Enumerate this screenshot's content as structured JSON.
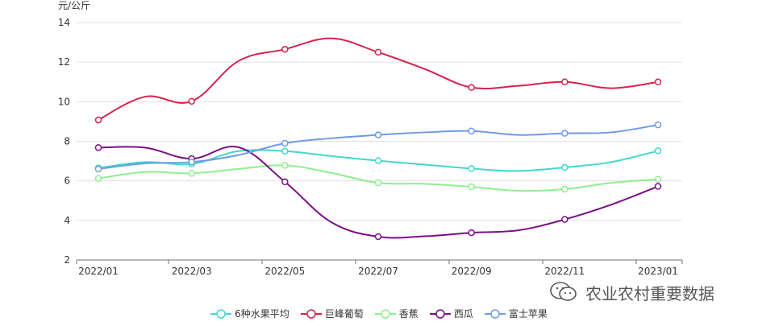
{
  "chart_data": {
    "type": "line",
    "unit_label": "元/公斤",
    "ylim": [
      2,
      14
    ],
    "y_ticks": [
      2,
      4,
      6,
      8,
      10,
      12,
      14
    ],
    "x": [
      "2022/01",
      "2022/02",
      "2022/03",
      "2022/04",
      "2022/05",
      "2022/06",
      "2022/07",
      "2022/08",
      "2022/09",
      "2022/10",
      "2022/11",
      "2022/12",
      "2023/01"
    ],
    "x_tick_labels": [
      "2022/01",
      "2022/03",
      "2022/05",
      "2022/07",
      "2022/09",
      "2022/11",
      "2023/01"
    ],
    "grid": true,
    "legend_position": "bottom",
    "series": [
      {
        "name": "6种水果平均",
        "color": "#40d8cc",
        "values": [
          6.65,
          6.95,
          6.85,
          7.5,
          7.5,
          7.25,
          7.02,
          6.82,
          6.62,
          6.5,
          6.68,
          6.95,
          7.52
        ]
      },
      {
        "name": "巨峰葡萄",
        "color": "#d7224a",
        "values": [
          9.08,
          10.25,
          10.02,
          12.05,
          12.65,
          13.2,
          12.5,
          11.65,
          10.72,
          10.8,
          11.0,
          10.68,
          11.0
        ]
      },
      {
        "name": "香蕉",
        "color": "#90ee90",
        "values": [
          6.12,
          6.45,
          6.38,
          6.6,
          6.78,
          6.4,
          5.9,
          5.85,
          5.7,
          5.5,
          5.58,
          5.9,
          6.08
        ]
      },
      {
        "name": "西瓜",
        "color": "#7b0f86",
        "values": [
          7.68,
          7.68,
          7.12,
          7.7,
          5.95,
          3.9,
          3.18,
          3.2,
          3.38,
          3.5,
          4.05,
          4.8,
          5.72
        ]
      },
      {
        "name": "富士苹果",
        "color": "#6f9be3",
        "values": [
          6.6,
          6.88,
          6.95,
          7.3,
          7.9,
          8.15,
          8.32,
          8.45,
          8.52,
          8.32,
          8.4,
          8.45,
          8.83
        ]
      }
    ]
  },
  "watermark": {
    "text": "农业农村重要数据",
    "icon": "wechat-icon"
  }
}
